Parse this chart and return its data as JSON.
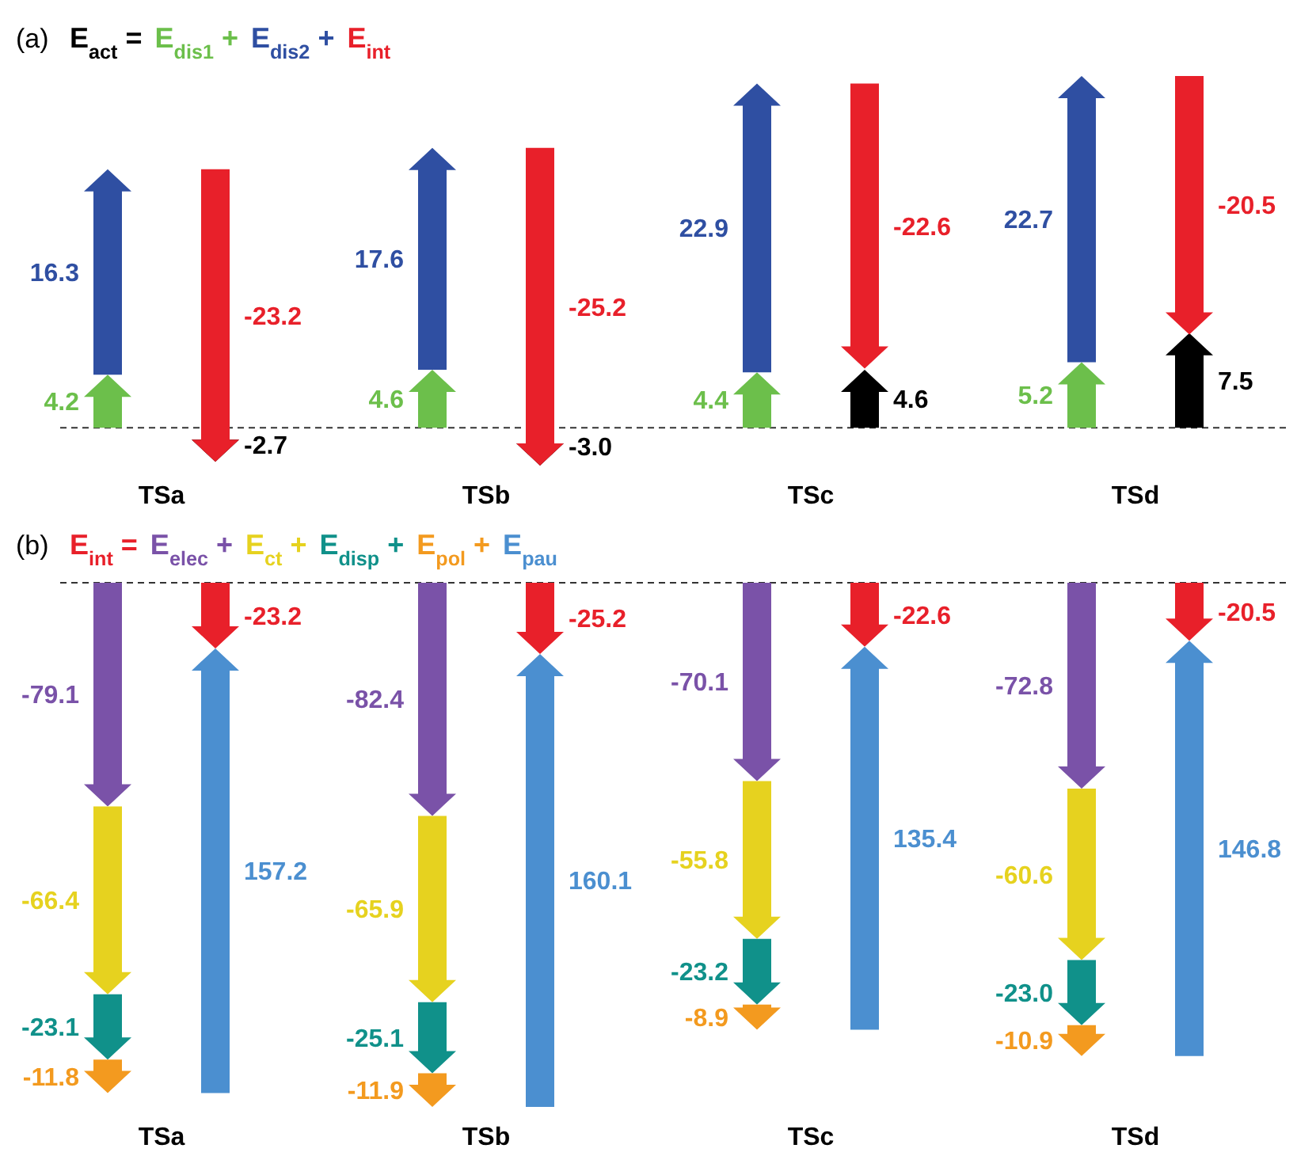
{
  "chart_data": [
    {
      "type": "other",
      "title": "(a)",
      "categories": [
        "TSa",
        "TSb",
        "TSc",
        "TSd"
      ],
      "series": [
        {
          "name": "E$_{act}$ =",
          "color": "#000000",
          "values": [
            -2.7,
            -3.0,
            4.6,
            7.5
          ],
          "value_labels": [
            "-2.7",
            "-3.0",
            "4.6",
            "7.5"
          ]
        },
        {
          "name": "E$_{dis1}$ +",
          "color": "#6cbf4b",
          "values": [
            4.2,
            4.6,
            4.4,
            5.2
          ],
          "value_labels": [
            "4.2",
            "4.6",
            "4.4",
            "5.2"
          ]
        },
        {
          "name": "E$_{dis2}$ +",
          "color": "#2f4fa2",
          "values": [
            16.3,
            17.6,
            22.9,
            22.7
          ],
          "value_labels": [
            "16.3",
            "17.6",
            "22.9",
            "22.7"
          ]
        },
        {
          "name": "E$_{int}$",
          "color": "#e8202a",
          "values": [
            -23.2,
            -25.2,
            -22.6,
            -20.5
          ],
          "value_labels": [
            "-23.2",
            "-25.2",
            "-22.6",
            "-20.5"
          ]
        }
      ]
    },
    {
      "type": "other",
      "title": "(b)",
      "categories": [
        "TSa",
        "TSb",
        "TSc",
        "TSd"
      ],
      "series": [
        {
          "name": "E$_{int}$ =",
          "color": "#e8202a",
          "values": [
            -23.2,
            -25.2,
            -22.6,
            -20.5
          ],
          "value_labels": [
            "-23.2",
            "-25.2",
            "-22.6",
            "-20.5"
          ]
        },
        {
          "name": "E$_{elec}$ +",
          "color": "#7a52a8",
          "values": [
            -79.1,
            -82.4,
            -70.1,
            -72.8
          ],
          "value_labels": [
            "-79.1",
            "-82.4",
            "-70.1",
            "-72.8"
          ]
        },
        {
          "name": "E$_{ct}$ +",
          "color": "#e6d21f",
          "values": [
            -66.4,
            -65.9,
            -55.8,
            -60.6
          ],
          "value_labels": [
            "-66.4",
            "-65.9",
            "-55.8",
            "-60.6"
          ]
        },
        {
          "name": "E$_{disp}$ +",
          "color": "#10918a",
          "values": [
            -23.1,
            -25.1,
            -23.2,
            -23.0
          ],
          "value_labels": [
            "-23.1",
            "-25.1",
            "-23.2",
            "-23.0"
          ]
        },
        {
          "name": "E$_{pol}$ +",
          "color": "#f39a1f",
          "values": [
            -11.8,
            -11.9,
            -8.9,
            -10.9
          ],
          "value_labels": [
            "-11.8",
            "-11.9",
            "-8.9",
            "-10.9"
          ]
        },
        {
          "name": "E$_{pau}$",
          "color": "#4b8fd0",
          "values": [
            157.2,
            160.1,
            135.4,
            146.8
          ],
          "value_labels": [
            "157.2",
            "160.1",
            "135.4",
            "146.8"
          ]
        }
      ]
    }
  ]
}
